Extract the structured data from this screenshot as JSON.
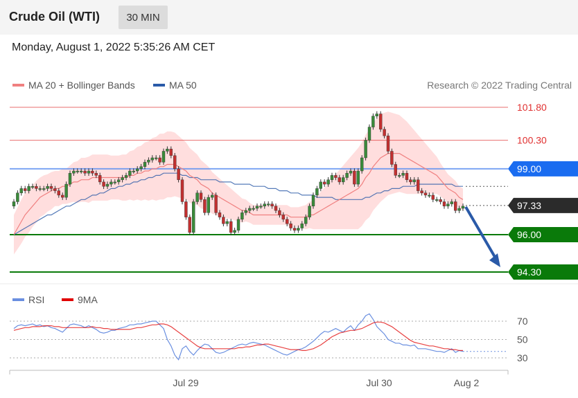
{
  "header": {
    "title": "Crude Oil (WTI)",
    "timeframe": "30 MIN"
  },
  "datetime": "Monday, August 1, 2022 5:35:26 AM CET",
  "legend": {
    "ma20": {
      "label": "MA 20 + Bollinger Bands",
      "color": "#f08080"
    },
    "ma50": {
      "label": "MA 50",
      "color": "#2a5aa8"
    }
  },
  "credit": "Research © 2022 Trading Central",
  "rsi_legend": {
    "rsi": {
      "label": "RSI",
      "color": "#6a8fe0"
    },
    "ma9": {
      "label": "9MA",
      "color": "#e00000"
    }
  },
  "colors": {
    "up_candle": "#3a8a3a",
    "down_candle": "#c23030",
    "resistance": "#e03030",
    "pivot": "#5b8ff0",
    "support": "#0a7a0a",
    "arrow": "#2a5aa8",
    "bands": "#ffd6d6"
  },
  "chart_data": {
    "type": "candlestick",
    "price_range": [
      93.5,
      102.5
    ],
    "x_ticks": [
      "Jul 29",
      "Jul 30",
      "Aug 2"
    ],
    "levels": [
      {
        "value": 101.8,
        "label": "101.80",
        "kind": "resistance"
      },
      {
        "value": 100.3,
        "label": "100.30",
        "kind": "resistance"
      },
      {
        "value": 99.0,
        "label": "99.00",
        "kind": "pivot"
      },
      {
        "value": 97.33,
        "label": "97.33",
        "kind": "last"
      },
      {
        "value": 96.0,
        "label": "96.00",
        "kind": "support"
      },
      {
        "value": 94.3,
        "label": "94.30",
        "kind": "support"
      }
    ],
    "close": [
      97.5,
      97.9,
      98.1,
      98.0,
      98.2,
      98.2,
      98.1,
      98.1,
      98.1,
      98.2,
      98.1,
      98.0,
      97.8,
      97.7,
      98.3,
      98.8,
      98.9,
      98.9,
      98.9,
      98.8,
      98.9,
      98.8,
      98.7,
      98.4,
      98.2,
      98.3,
      98.4,
      98.4,
      98.5,
      98.6,
      98.7,
      98.9,
      98.9,
      99.0,
      99.1,
      99.3,
      99.4,
      99.5,
      99.5,
      99.3,
      99.8,
      99.9,
      99.6,
      99.0,
      98.5,
      97.5,
      96.8,
      96.1,
      97.5,
      97.9,
      97.6,
      97.0,
      97.7,
      97.8,
      97.0,
      96.8,
      96.5,
      96.6,
      96.1,
      96.2,
      96.7,
      97.0,
      97.1,
      97.2,
      97.2,
      97.3,
      97.3,
      97.4,
      97.4,
      97.3,
      97.1,
      96.9,
      96.7,
      96.5,
      96.3,
      96.2,
      96.3,
      96.5,
      96.8,
      97.3,
      97.8,
      98.1,
      98.4,
      98.3,
      98.5,
      98.7,
      98.6,
      98.4,
      98.6,
      98.8,
      98.9,
      98.3,
      98.9,
      99.5,
      100.3,
      100.9,
      101.4,
      101.5,
      100.8,
      100.5,
      99.8,
      99.2,
      98.7,
      98.7,
      98.8,
      98.5,
      98.4,
      98.5,
      98.0,
      97.9,
      97.8,
      97.8,
      97.6,
      97.6,
      97.5,
      97.3,
      97.4,
      97.5,
      97.1,
      97.2,
      97.3
    ],
    "open": [
      97.3,
      97.5,
      97.9,
      98.1,
      98.0,
      98.2,
      98.2,
      98.1,
      98.1,
      98.1,
      98.2,
      98.1,
      98.0,
      97.8,
      97.7,
      98.3,
      98.8,
      98.9,
      98.9,
      98.9,
      98.8,
      98.9,
      98.8,
      98.7,
      98.4,
      98.2,
      98.3,
      98.4,
      98.4,
      98.5,
      98.6,
      98.7,
      98.9,
      98.9,
      99.0,
      99.1,
      99.3,
      99.4,
      99.5,
      99.5,
      99.3,
      99.8,
      99.9,
      99.6,
      99.0,
      98.5,
      97.5,
      96.8,
      96.1,
      97.5,
      97.9,
      97.6,
      97.0,
      97.7,
      97.8,
      97.0,
      96.8,
      96.5,
      96.6,
      96.1,
      96.2,
      96.7,
      97.0,
      97.1,
      97.2,
      97.2,
      97.3,
      97.3,
      97.4,
      97.4,
      97.3,
      97.1,
      96.9,
      96.7,
      96.5,
      96.3,
      96.2,
      96.3,
      96.5,
      96.8,
      97.3,
      97.8,
      98.1,
      98.4,
      98.3,
      98.5,
      98.7,
      98.6,
      98.4,
      98.6,
      98.8,
      98.9,
      98.3,
      98.9,
      99.5,
      100.3,
      100.9,
      101.4,
      101.5,
      100.8,
      100.5,
      99.8,
      99.2,
      98.7,
      98.7,
      98.8,
      98.5,
      98.4,
      98.5,
      98.0,
      97.9,
      97.8,
      97.8,
      97.6,
      97.6,
      97.5,
      97.3,
      97.4,
      97.5,
      97.1,
      97.2
    ],
    "ma20": [
      96.0,
      96.3,
      96.6,
      96.9,
      97.1,
      97.3,
      97.5,
      97.7,
      97.8,
      97.9,
      98.0,
      98.1,
      98.1,
      98.2,
      98.2,
      98.3,
      98.4,
      98.4,
      98.5,
      98.5,
      98.5,
      98.6,
      98.6,
      98.6,
      98.6,
      98.6,
      98.6,
      98.6,
      98.6,
      98.6,
      98.6,
      98.7,
      98.7,
      98.8,
      98.8,
      98.9,
      98.9,
      99.0,
      99.0,
      99.1,
      99.1,
      99.2,
      99.2,
      99.2,
      99.1,
      99.0,
      98.9,
      98.7,
      98.6,
      98.5,
      98.3,
      98.2,
      98.1,
      97.9,
      97.8,
      97.7,
      97.6,
      97.5,
      97.4,
      97.3,
      97.2,
      97.1,
      97.1,
      97.0,
      96.9,
      96.9,
      96.9,
      96.9,
      96.9,
      96.9,
      96.9,
      96.9,
      96.9,
      96.9,
      96.8,
      96.8,
      96.8,
      96.8,
      96.8,
      96.9,
      96.9,
      97.0,
      97.1,
      97.2,
      97.3,
      97.4,
      97.5,
      97.6,
      97.7,
      97.8,
      97.9,
      98.0,
      98.1,
      98.3,
      98.6,
      98.8,
      99.1,
      99.3,
      99.5,
      99.6,
      99.7,
      99.7,
      99.7,
      99.7,
      99.6,
      99.5,
      99.4,
      99.3,
      99.2,
      99.1,
      99.0,
      98.9,
      98.8,
      98.7,
      98.5,
      98.3,
      98.1,
      98.0,
      97.9,
      97.7,
      97.6
    ],
    "ma50": [
      96.0,
      96.1,
      96.2,
      96.3,
      96.4,
      96.5,
      96.6,
      96.7,
      96.8,
      96.9,
      96.9,
      97.0,
      97.1,
      97.2,
      97.3,
      97.3,
      97.4,
      97.5,
      97.6,
      97.6,
      97.7,
      97.8,
      97.8,
      97.9,
      97.9,
      98.0,
      98.1,
      98.1,
      98.2,
      98.2,
      98.3,
      98.3,
      98.4,
      98.4,
      98.5,
      98.5,
      98.6,
      98.6,
      98.7,
      98.7,
      98.8,
      98.8,
      98.8,
      98.8,
      98.8,
      98.7,
      98.7,
      98.6,
      98.6,
      98.6,
      98.5,
      98.5,
      98.5,
      98.5,
      98.5,
      98.4,
      98.4,
      98.4,
      98.4,
      98.3,
      98.3,
      98.3,
      98.3,
      98.3,
      98.2,
      98.2,
      98.2,
      98.2,
      98.1,
      98.1,
      98.1,
      98.0,
      98.0,
      98.0,
      97.9,
      97.9,
      97.9,
      97.8,
      97.8,
      97.8,
      97.8,
      97.7,
      97.7,
      97.7,
      97.7,
      97.7,
      97.6,
      97.6,
      97.6,
      97.6,
      97.6,
      97.6,
      97.6,
      97.6,
      97.7,
      97.7,
      97.8,
      97.9,
      97.9,
      98.0,
      98.0,
      98.1,
      98.1,
      98.1,
      98.2,
      98.2,
      98.2,
      98.2,
      98.3,
      98.3,
      98.3,
      98.3,
      98.3,
      98.3,
      98.3,
      98.3,
      98.3,
      98.3,
      98.2,
      98.2,
      98.2
    ],
    "bb_width": [
      1.8,
      1.9,
      2.0,
      2.0,
      2.0,
      1.9,
      1.9,
      1.8,
      1.8,
      1.7,
      1.7,
      1.6,
      1.6,
      1.6,
      1.6,
      1.7,
      1.8,
      1.9,
      2.0,
      2.0,
      2.1,
      2.1,
      2.1,
      2.1,
      2.1,
      2.1,
      2.0,
      2.0,
      2.0,
      2.1,
      2.1,
      2.2,
      2.3,
      2.4,
      2.5,
      2.6,
      2.7,
      2.8,
      2.9,
      3.0,
      3.0,
      3.0,
      3.0,
      2.9,
      2.8,
      2.7,
      2.6,
      2.5,
      2.4,
      2.3,
      2.2,
      2.1,
      2.0,
      1.9,
      1.8,
      1.7,
      1.6,
      1.5,
      1.4,
      1.3,
      1.2,
      1.1,
      1.0,
      0.9,
      0.9,
      0.9,
      0.9,
      0.9,
      0.9,
      0.9,
      0.9,
      0.9,
      0.9,
      0.9,
      0.9,
      0.9,
      0.9,
      1.0,
      1.1,
      1.2,
      1.3,
      1.5,
      1.7,
      1.9,
      2.1,
      2.3,
      2.5,
      2.7,
      2.9,
      3.1,
      3.3,
      3.5,
      3.7,
      3.8,
      3.9,
      4.0,
      4.0,
      4.0,
      4.0,
      3.9,
      3.8,
      3.7,
      3.6,
      3.5,
      3.4,
      3.3,
      3.1,
      2.9,
      2.7,
      2.5,
      2.3,
      2.1,
      1.9,
      1.7,
      1.5,
      1.4,
      1.3,
      1.2,
      1.1,
      1.0,
      1.0
    ],
    "rsi_range": [
      20,
      82
    ],
    "rsi_levels": [
      {
        "value": 70,
        "label": "70"
      },
      {
        "value": 50,
        "label": "50"
      },
      {
        "value": 30,
        "label": "30"
      }
    ],
    "rsi": [
      62,
      65,
      66,
      65,
      66,
      67,
      65,
      66,
      64,
      65,
      63,
      62,
      60,
      58,
      62,
      66,
      67,
      66,
      65,
      63,
      65,
      63,
      61,
      58,
      57,
      58,
      60,
      60,
      62,
      63,
      64,
      66,
      66,
      67,
      67,
      68,
      69,
      70,
      70,
      66,
      62,
      50,
      43,
      33,
      28,
      40,
      43,
      37,
      33,
      38,
      42,
      45,
      44,
      40,
      36,
      35,
      36,
      38,
      40,
      42,
      44,
      45,
      44,
      46,
      47,
      46,
      45,
      44,
      42,
      40,
      38,
      36,
      34,
      33,
      35,
      37,
      39,
      40,
      42,
      45,
      48,
      52,
      56,
      59,
      58,
      60,
      62,
      60,
      58,
      62,
      65,
      60,
      66,
      70,
      76,
      78,
      72,
      64,
      60,
      56,
      50,
      48,
      46,
      46,
      44,
      44,
      43,
      44,
      40,
      40,
      40,
      39,
      38,
      37,
      37,
      36,
      38,
      40,
      36,
      38,
      37
    ],
    "rsi_ma9": [
      60,
      61,
      62,
      63,
      63,
      64,
      64,
      64,
      65,
      65,
      65,
      64,
      64,
      63,
      63,
      63,
      63,
      63,
      63,
      63,
      63,
      64,
      63,
      63,
      62,
      62,
      61,
      61,
      61,
      61,
      61,
      61,
      62,
      63,
      63,
      64,
      65,
      66,
      66,
      67,
      67,
      66,
      64,
      61,
      58,
      55,
      52,
      49,
      46,
      43,
      41,
      40,
      40,
      40,
      40,
      40,
      40,
      40,
      40,
      40,
      41,
      41,
      42,
      42,
      43,
      44,
      44,
      45,
      45,
      44,
      43,
      42,
      41,
      40,
      39,
      39,
      39,
      38,
      38,
      39,
      40,
      42,
      44,
      47,
      50,
      53,
      55,
      57,
      58,
      59,
      60,
      60,
      61,
      62,
      64,
      66,
      68,
      69,
      69,
      68,
      66,
      64,
      61,
      58,
      55,
      52,
      49,
      47,
      46,
      45,
      44,
      43,
      43,
      42,
      41,
      40,
      40,
      39,
      39,
      38,
      38
    ]
  }
}
